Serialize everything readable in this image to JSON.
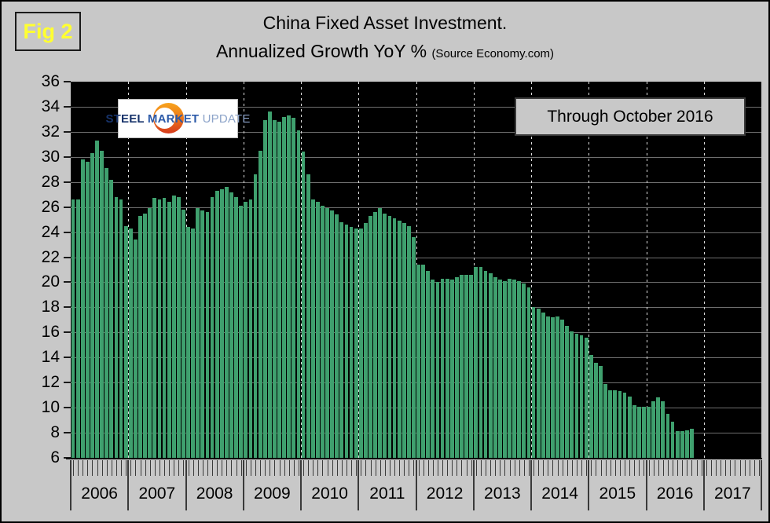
{
  "figure_label": "Fig 2",
  "header": {
    "title_line1": "China Fixed Asset Investment.",
    "title_line2": "Annualized Growth YoY %",
    "title_source": "(Source Economy.com)"
  },
  "annotation_box": "Through October 2016",
  "logo": {
    "steel": "STEEL",
    "market": " MARKET",
    "update": " UPDATE"
  },
  "colors": {
    "page_bg": "#C8C8C8",
    "plot_bg": "#000000",
    "bar": "#3FA06E",
    "grid_h": "#6F6F6F",
    "grid_v_dash": "#DCDCDC",
    "fig_label": "#FFFF31",
    "box_border": "#3A3A3A",
    "logo_steel": "#17336B",
    "logo_market": "#2C5AA8",
    "logo_update": "#8CA3C9",
    "logo_orange_top": "#F7A41E",
    "logo_orange_bottom": "#D63A1D"
  },
  "chart_data": {
    "type": "bar",
    "title": "China Fixed Asset Investment. Annualized Growth YoY %",
    "source": "Economy.com",
    "unit": "%",
    "ylim": [
      6,
      36
    ],
    "ytick_step": 2,
    "yticks": [
      36,
      34,
      32,
      30,
      28,
      26,
      24,
      22,
      20,
      18,
      16,
      14,
      12,
      10,
      8,
      6
    ],
    "grid": true,
    "legend_position": "none",
    "x_years": [
      "2006",
      "2007",
      "2008",
      "2009",
      "2010",
      "2011",
      "2012",
      "2013",
      "2014",
      "2015",
      "2016",
      "2017"
    ],
    "months_per_year": 12,
    "start_month": "2006-01",
    "end_month": "2016-10",
    "values": [
      26.6,
      26.6,
      29.8,
      29.6,
      30.3,
      31.3,
      30.5,
      29.1,
      28.2,
      26.8,
      26.6,
      24.5,
      24.3,
      23.4,
      25.3,
      25.5,
      25.9,
      26.7,
      26.6,
      26.7,
      26.4,
      26.9,
      26.8,
      25.8,
      24.4,
      24.3,
      25.9,
      25.7,
      25.6,
      26.8,
      27.3,
      27.4,
      27.6,
      27.2,
      26.8,
      26.1,
      26.4,
      26.6,
      28.6,
      30.5,
      32.9,
      33.6,
      32.9,
      32.8,
      33.2,
      33.3,
      33.1,
      32.1,
      30.4,
      28.6,
      26.6,
      26.4,
      26.1,
      25.9,
      25.7,
      25.4,
      24.8,
      24.6,
      24.4,
      24.3,
      24.3,
      24.7,
      25.3,
      25.6,
      25.9,
      25.5,
      25.3,
      25.1,
      24.9,
      24.7,
      24.5,
      23.6,
      21.4,
      21.4,
      20.9,
      20.2,
      20.0,
      20.3,
      20.3,
      20.2,
      20.4,
      20.6,
      20.6,
      20.6,
      21.2,
      21.2,
      20.9,
      20.7,
      20.4,
      20.2,
      20.1,
      20.3,
      20.2,
      20.1,
      19.9,
      19.6,
      18.0,
      17.9,
      17.6,
      17.3,
      17.2,
      17.3,
      17.0,
      16.5,
      16.1,
      15.9,
      15.8,
      15.6,
      14.2,
      13.6,
      13.3,
      11.9,
      11.4,
      11.4,
      11.3,
      11.2,
      10.9,
      10.2,
      10.1,
      10.1,
      10.1,
      10.5,
      10.8,
      10.5,
      9.5,
      8.9,
      8.1,
      8.1,
      8.2,
      8.3
    ]
  }
}
